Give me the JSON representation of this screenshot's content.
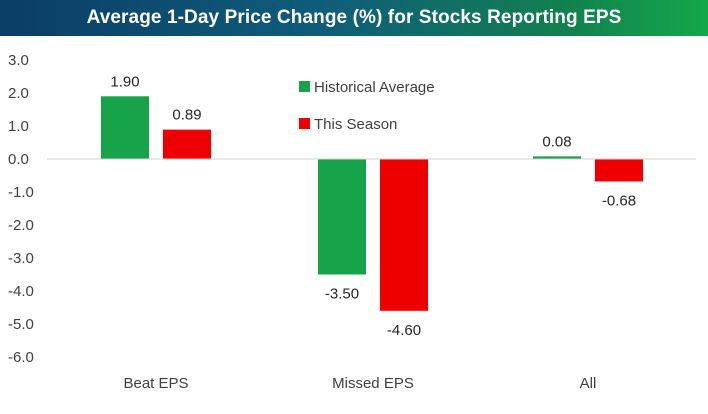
{
  "chart_data": {
    "type": "bar",
    "title": "Average 1-Day Price Change (%) for Stocks Reporting EPS",
    "categories": [
      "Beat EPS",
      "Missed EPS",
      "All"
    ],
    "series": [
      {
        "name": "Historical Average",
        "color": "#16a34a",
        "values": [
          1.9,
          -3.5,
          0.08
        ],
        "labels": [
          "1.90",
          "-3.50",
          "0.08"
        ]
      },
      {
        "name": "This Season",
        "color": "#ef0000",
        "values": [
          0.89,
          -4.6,
          -0.68
        ],
        "labels": [
          "0.89",
          "-4.60",
          "-0.68"
        ]
      }
    ],
    "ylim": [
      -6.0,
      3.0
    ],
    "yticks": [
      3.0,
      2.0,
      1.0,
      0.0,
      -1.0,
      -2.0,
      -3.0,
      -4.0,
      -5.0,
      -6.0
    ],
    "ytick_labels": [
      "3.0",
      "2.0",
      "1.0",
      "0.0",
      "-1.0",
      "-2.0",
      "-3.0",
      "-4.0",
      "-5.0",
      "-6.0"
    ],
    "grid": false,
    "legend": "top-center"
  }
}
